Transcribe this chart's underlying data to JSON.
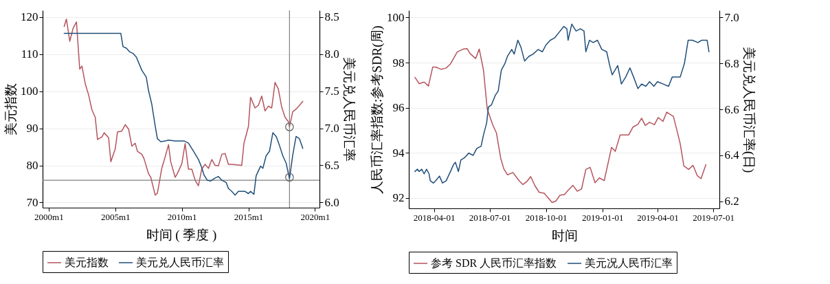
{
  "chart_data": [
    {
      "type": "line",
      "xlabel": "时间 ( 季度 )",
      "ylabel": "美元指数",
      "y2label": "美元兑人民币汇率",
      "xlim": [
        "1999-07-18",
        "2020-05-04"
      ],
      "xticks": [
        {
          "value": "2000-01",
          "label": "2000m1"
        },
        {
          "value": "2005-01",
          "label": "2005m1"
        },
        {
          "value": "2010-01",
          "label": "2010m1"
        },
        {
          "value": "2015-01",
          "label": "2015m1"
        },
        {
          "value": "2020-01",
          "label": "2020m1"
        }
      ],
      "ylim": [
        68.6,
        121.85
      ],
      "yticks": [
        70,
        80,
        90,
        100,
        110,
        120
      ],
      "y2lim": [
        5.93,
        8.59
      ],
      "y2ticks": [
        {
          "value": 6,
          "label": "6.0"
        },
        {
          "value": 6.5,
          "label": "6.5"
        },
        {
          "value": 7,
          "label": "7.0"
        },
        {
          "value": 7.5,
          "label": "7.5"
        },
        {
          "value": 8,
          "label": "8.0"
        },
        {
          "value": 8.5,
          "label": "8.5"
        }
      ],
      "grid": "y",
      "legend": "bottom",
      "ref_lines": [
        {
          "axis": "x",
          "value": "2018-02",
          "color": "#808080"
        },
        {
          "axis": "y",
          "value": 76,
          "color": "#808080"
        }
      ],
      "series": [
        {
          "name": "美元指数",
          "color": "#b5535c",
          "x": [
            "2001-03",
            "2001-05",
            "2001-08",
            "2001-11",
            "2002-02",
            "2002-05",
            "2002-07",
            "2002-10",
            "2003-01",
            "2003-04",
            "2003-07",
            "2003-09",
            "2004-01",
            "2004-03",
            "2004-07",
            "2004-09",
            "2005-01",
            "2005-03",
            "2005-07",
            "2005-10",
            "2006-01",
            "2006-04",
            "2006-07",
            "2006-09",
            "2007-01",
            "2007-03",
            "2007-07",
            "2007-09",
            "2008-01",
            "2008-03",
            "2008-07",
            "2008-09",
            "2009-01",
            "2009-03",
            "2009-07",
            "2009-09",
            "2010-01",
            "2010-04",
            "2010-07",
            "2010-10",
            "2011-01",
            "2011-04",
            "2011-07",
            "2011-10",
            "2012-01",
            "2012-04",
            "2012-07",
            "2012-10",
            "2013-01",
            "2013-04",
            "2013-07",
            "2013-10",
            "2014-07",
            "2014-09",
            "2015-01",
            "2015-03",
            "2015-07",
            "2015-10",
            "2016-01",
            "2016-04",
            "2016-07",
            "2016-10",
            "2017-01",
            "2017-04",
            "2017-07",
            "2017-10",
            "2018-01",
            "2018-02",
            "2018-05",
            "2018-08",
            "2018-11",
            "2019-02"
          ],
          "values": [
            117.5,
            119.5,
            113.5,
            117,
            118.7,
            106,
            106.8,
            102,
            99,
            95,
            93,
            87,
            87.7,
            88.8,
            87.5,
            81,
            84.5,
            89,
            89.3,
            91,
            89.8,
            85.2,
            86,
            83.8,
            83,
            81.8,
            77.8,
            76.8,
            72,
            72.5,
            79.3,
            81.3,
            85.6,
            81,
            76.8,
            77.8,
            80.5,
            85.9,
            79,
            79,
            76,
            74.5,
            79,
            80.3,
            79.2,
            81.6,
            80,
            79.9,
            83,
            83.2,
            80.3,
            80.3,
            80,
            86,
            90.5,
            98.4,
            95.5,
            96.2,
            98.7,
            94.7,
            96,
            95.5,
            102.4,
            100.6,
            95.8,
            93,
            91.8,
            90.4,
            94.5,
            95.2,
            96.2,
            97.3
          ]
        },
        {
          "name": "美元兑人民币汇率",
          "color": "#1f4e79",
          "axis": "y2",
          "x": [
            "2001-03",
            "2005-06",
            "2005-08",
            "2005-11",
            "2006-02",
            "2006-05",
            "2006-08",
            "2007-01",
            "2007-05",
            "2007-07",
            "2007-10",
            "2008-01",
            "2008-03",
            "2008-06",
            "2008-10",
            "2009-01",
            "2009-07",
            "2010-03",
            "2010-07",
            "2010-12",
            "2011-04",
            "2011-07",
            "2011-09",
            "2011-12",
            "2012-03",
            "2012-07",
            "2012-10",
            "2013-01",
            "2013-05",
            "2013-07",
            "2013-10",
            "2014-01",
            "2014-04",
            "2014-10",
            "2015-01",
            "2015-03",
            "2015-06",
            "2015-08",
            "2015-12",
            "2016-02",
            "2016-05",
            "2016-08",
            "2016-11",
            "2017-02",
            "2017-05",
            "2017-08",
            "2017-11",
            "2018-02",
            "2018-05",
            "2018-08",
            "2018-11",
            "2019-02"
          ],
          "values": [
            8.28,
            8.28,
            8.1,
            8.08,
            8.03,
            8.01,
            7.96,
            7.78,
            7.69,
            7.51,
            7.32,
            7.03,
            6.86,
            6.82,
            6.83,
            6.84,
            6.83,
            6.83,
            6.8,
            6.68,
            6.58,
            6.47,
            6.37,
            6.3,
            6.29,
            6.33,
            6.35,
            6.3,
            6.27,
            6.19,
            6.15,
            6.1,
            6.15,
            6.15,
            6.12,
            6.15,
            6.11,
            6.36,
            6.49,
            6.46,
            6.63,
            6.69,
            6.94,
            6.89,
            6.77,
            6.63,
            6.53,
            6.32,
            6.64,
            6.89,
            6.86,
            6.73
          ]
        },
        {
          "type": "scatter",
          "marker": "circle",
          "color": "#606060",
          "x": [
            "2018-02"
          ],
          "values": [
            90.4
          ]
        },
        {
          "type": "scatter",
          "marker": "circle",
          "color": "#606060",
          "axis": "y2",
          "x": [
            "2018-02"
          ],
          "values": [
            6.34
          ]
        }
      ]
    },
    {
      "type": "line",
      "xlabel": "时间",
      "ylabel": "人民币汇率指数:参考SDR(周)",
      "y2label": "美元兑人民币汇率(日)",
      "xlim": [
        "2018-02-19",
        "2019-07-11"
      ],
      "xticks": [
        "2018-04-01",
        "2018-07-01",
        "2018-10-01",
        "2019-01-01",
        "2019-04-01",
        "2019-07-01"
      ],
      "ylim": [
        91.53,
        100.32
      ],
      "yticks": [
        92,
        94,
        96,
        98,
        100
      ],
      "y2lim": [
        6.17,
        7.03
      ],
      "y2ticks": [
        {
          "value": 6.2,
          "label": "6.2"
        },
        {
          "value": 6.4,
          "label": "6.4"
        },
        {
          "value": 6.6,
          "label": "6.6"
        },
        {
          "value": 6.8,
          "label": "6.8"
        },
        {
          "value": 7,
          "label": "7.0"
        }
      ],
      "grid": "y",
      "legend": "bottom",
      "series": [
        {
          "name": "参考 SDR 人民币汇率指数",
          "color": "#b5535c",
          "x": [
            "2018-03-01",
            "2018-03-08",
            "2018-03-16",
            "2018-03-23",
            "2018-03-30",
            "2018-04-04",
            "2018-04-13",
            "2018-04-21",
            "2018-04-28",
            "2018-05-09",
            "2018-05-19",
            "2018-05-25",
            "2018-05-30",
            "2018-06-08",
            "2018-06-14",
            "2018-06-21",
            "2018-06-27",
            "2018-07-06",
            "2018-07-12",
            "2018-07-19",
            "2018-07-24",
            "2018-07-30",
            "2018-08-08",
            "2018-08-18",
            "2018-08-24",
            "2018-08-30",
            "2018-09-06",
            "2018-09-13",
            "2018-09-20",
            "2018-09-28",
            "2018-10-03",
            "2018-10-11",
            "2018-10-17",
            "2018-10-24",
            "2018-10-31",
            "2018-11-06",
            "2018-11-14",
            "2018-11-21",
            "2018-11-28",
            "2018-12-05",
            "2018-12-12",
            "2018-12-20",
            "2018-12-27",
            "2019-01-04",
            "2019-01-16",
            "2019-01-22",
            "2019-01-30",
            "2019-02-13",
            "2019-02-20",
            "2019-02-28",
            "2019-03-06",
            "2019-03-12",
            "2019-03-19",
            "2019-03-27",
            "2019-04-02",
            "2019-04-10",
            "2019-04-16",
            "2019-04-27",
            "2019-05-08",
            "2019-05-14",
            "2019-05-22",
            "2019-05-29",
            "2019-06-05",
            "2019-06-11",
            "2019-06-19"
          ],
          "values": [
            97.35,
            97.06,
            97.14,
            96.96,
            97.8,
            97.8,
            97.7,
            97.76,
            97.94,
            98.47,
            98.6,
            98.62,
            98.4,
            98.18,
            98.6,
            97.65,
            95.94,
            95.24,
            94.88,
            93.76,
            93.29,
            93.02,
            93.12,
            92.76,
            92.59,
            92.7,
            92.94,
            92.53,
            92.24,
            92.2,
            92.04,
            91.79,
            91.85,
            92.12,
            92.14,
            92.33,
            92.55,
            92.29,
            92.39,
            93.26,
            93.35,
            92.67,
            92.88,
            92.76,
            94.24,
            94.06,
            94.79,
            94.79,
            95.14,
            95.26,
            95.53,
            95.21,
            95.35,
            95.24,
            95.56,
            95.39,
            95.8,
            95.61,
            94.41,
            93.41,
            93.26,
            93.44,
            92.98,
            92.85,
            93.47
          ]
        },
        {
          "name": "美元况人民币汇率",
          "color": "#1f4e79",
          "axis": "y2",
          "x": [
            "2018-03-01",
            "2018-03-05",
            "2018-03-08",
            "2018-03-12",
            "2018-03-16",
            "2018-03-20",
            "2018-03-24",
            "2018-03-26",
            "2018-03-31",
            "2018-04-04",
            "2018-04-10",
            "2018-04-15",
            "2018-04-21",
            "2018-04-28",
            "2018-05-03",
            "2018-05-06",
            "2018-05-11",
            "2018-05-15",
            "2018-05-21",
            "2018-05-28",
            "2018-06-04",
            "2018-06-10",
            "2018-06-17",
            "2018-06-21",
            "2018-06-26",
            "2018-06-29",
            "2018-07-04",
            "2018-07-10",
            "2018-07-15",
            "2018-07-20",
            "2018-07-26",
            "2018-07-30",
            "2018-08-06",
            "2018-08-10",
            "2018-08-16",
            "2018-08-21",
            "2018-08-27",
            "2018-09-03",
            "2018-09-10",
            "2018-09-18",
            "2018-09-25",
            "2018-10-01",
            "2018-10-08",
            "2018-10-15",
            "2018-10-24",
            "2018-10-30",
            "2018-11-04",
            "2018-11-06",
            "2018-11-12",
            "2018-11-19",
            "2018-11-26",
            "2018-12-02",
            "2018-12-05",
            "2018-12-11",
            "2018-12-17",
            "2018-12-24",
            "2018-12-31",
            "2019-01-08",
            "2019-01-13",
            "2019-01-17",
            "2019-01-26",
            "2019-02-01",
            "2019-02-08",
            "2019-02-15",
            "2019-02-21",
            "2019-02-28",
            "2019-03-06",
            "2019-03-13",
            "2019-03-19",
            "2019-03-26",
            "2019-04-01",
            "2019-04-10",
            "2019-04-19",
            "2019-04-25",
            "2019-05-08",
            "2019-05-15",
            "2019-05-21",
            "2019-05-28",
            "2019-06-06",
            "2019-06-12",
            "2019-06-21",
            "2019-06-24"
          ],
          "values": [
            6.33,
            6.34,
            6.33,
            6.34,
            6.32,
            6.34,
            6.32,
            6.29,
            6.28,
            6.29,
            6.31,
            6.28,
            6.29,
            6.33,
            6.36,
            6.37,
            6.33,
            6.38,
            6.39,
            6.41,
            6.4,
            6.43,
            6.44,
            6.49,
            6.54,
            6.61,
            6.62,
            6.66,
            6.68,
            6.77,
            6.8,
            6.83,
            6.86,
            6.84,
            6.9,
            6.87,
            6.81,
            6.83,
            6.84,
            6.86,
            6.85,
            6.88,
            6.9,
            6.91,
            6.94,
            6.96,
            6.95,
            6.9,
            6.97,
            6.94,
            6.95,
            6.94,
            6.85,
            6.9,
            6.89,
            6.9,
            6.86,
            6.85,
            6.79,
            6.75,
            6.79,
            6.71,
            6.74,
            6.78,
            6.74,
            6.69,
            6.71,
            6.7,
            6.72,
            6.7,
            6.72,
            6.71,
            6.7,
            6.74,
            6.74,
            6.8,
            6.9,
            6.9,
            6.89,
            6.9,
            6.9,
            6.85
          ]
        }
      ]
    }
  ]
}
